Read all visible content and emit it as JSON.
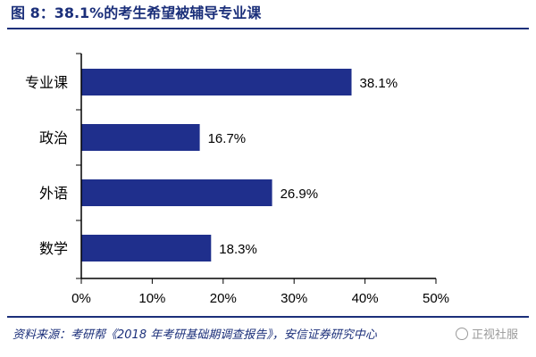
{
  "title": "图 8：38.1%的考生希望被辅导专业课",
  "source": "资料来源：考研帮《2018 年考研基础期调查报告》，安信证券研究中心",
  "watermark": {
    "text": "正视社服",
    "icon": "wechat-icon"
  },
  "colors": {
    "bar": "#1f2f8c",
    "accent": "#1b2f7a",
    "axis": "#000000"
  },
  "chart_data": {
    "type": "bar",
    "orientation": "horizontal",
    "categories": [
      "专业课",
      "政治",
      "外语",
      "数学"
    ],
    "values": [
      38.1,
      16.7,
      26.9,
      18.3
    ],
    "value_labels": [
      "38.1%",
      "16.7%",
      "26.9%",
      "18.3%"
    ],
    "xlim": [
      0,
      50
    ],
    "xticks": [
      "0%",
      "10%",
      "20%",
      "30%",
      "40%",
      "50%"
    ],
    "grid": false,
    "legend": "none"
  }
}
